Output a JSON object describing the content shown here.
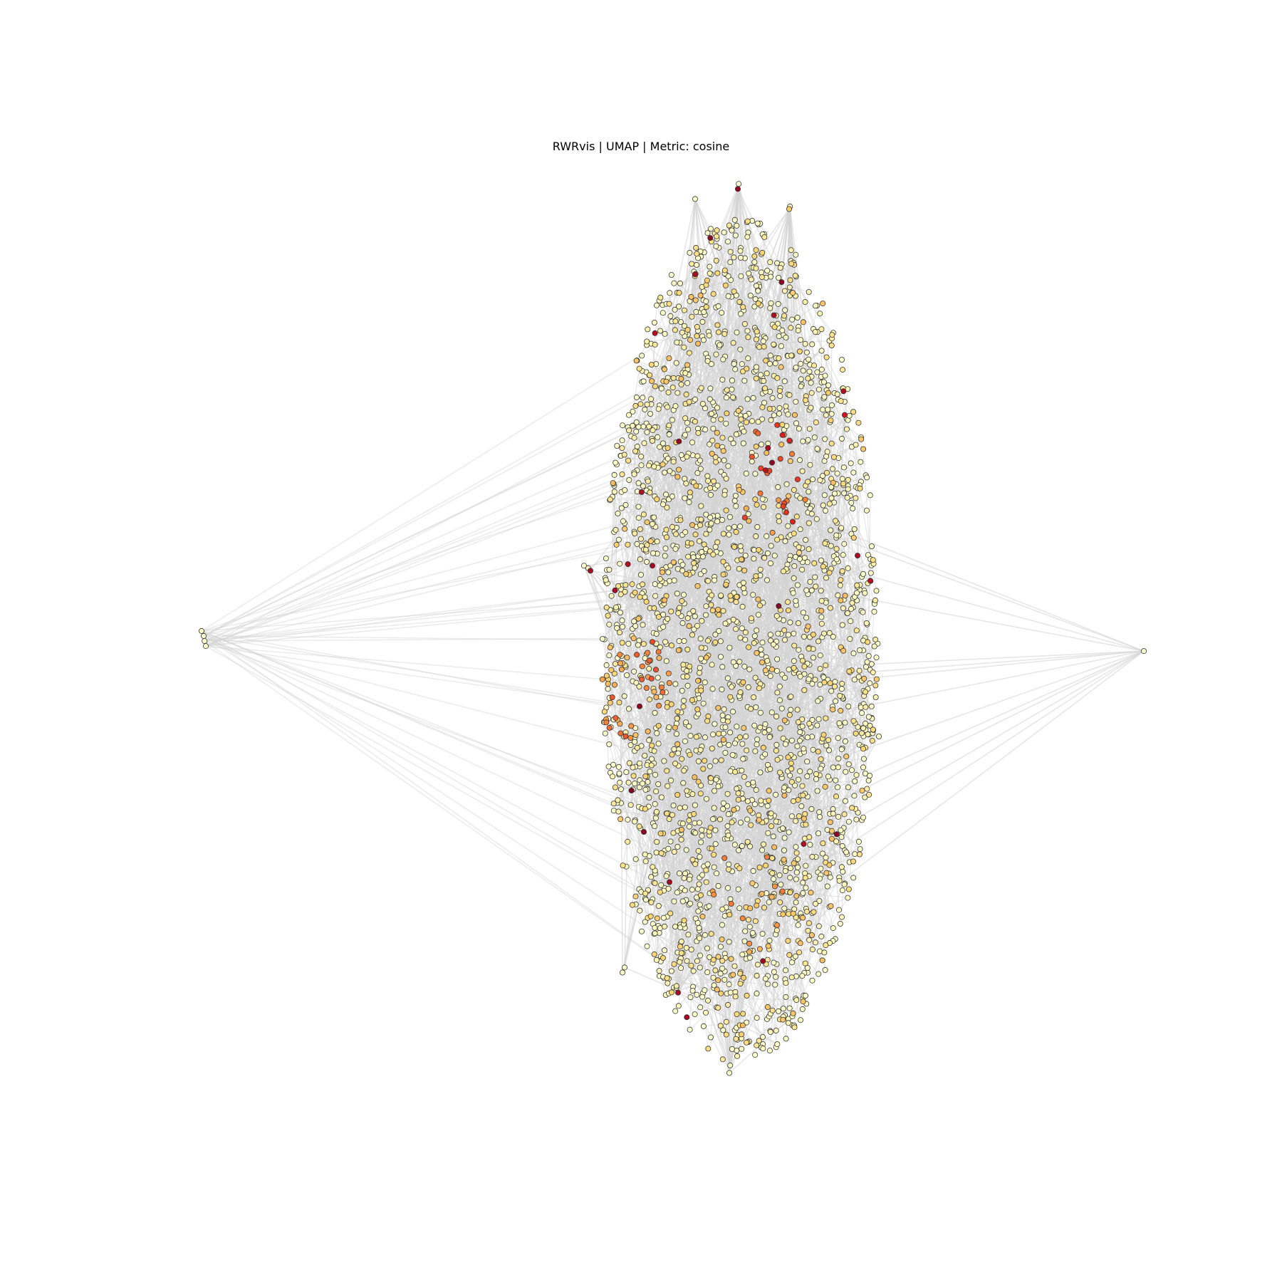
{
  "chart_data": {
    "type": "scatter",
    "subtype": "network-embedding",
    "title": "RWRvis | UMAP | Metric: cosine",
    "axes_visible": false,
    "grid": false,
    "legend": "none",
    "x_range": [
      -14.0,
      11.0
    ],
    "y_range": [
      -9.5,
      9.5
    ],
    "colormap": [
      "#ffffcc",
      "#fed976",
      "#fd8d3c",
      "#e31a1c",
      "#800026"
    ],
    "edge_color": "#d3d3d3",
    "node_edge_color": "#333333",
    "cluster_points": {
      "x_range": [
        -2.6,
        3.9
      ],
      "count": 2600,
      "hotspots": [
        {
          "x": 1.4,
          "y": 3.2,
          "intensity": 0.8
        },
        {
          "x": -1.8,
          "y": -0.9,
          "intensity": 0.65
        },
        {
          "x": 0.8,
          "y": -5.2,
          "intensity": 0.55
        }
      ]
    },
    "points": [
      {
        "x": -11.9,
        "y": 0.1,
        "v": 0.0
      },
      {
        "x": -11.95,
        "y": 0.2,
        "v": 0.0
      },
      {
        "x": -11.88,
        "y": 0.0,
        "v": 0.0
      },
      {
        "x": -11.85,
        "y": -0.1,
        "v": 0.0
      },
      {
        "x": 10.1,
        "y": -0.2,
        "v": 0.0
      },
      {
        "x": -0.4,
        "y": 8.8,
        "v": 0.0
      },
      {
        "x": 0.6,
        "y": 9.0,
        "v": 0.95
      },
      {
        "x": 0.62,
        "y": 9.1,
        "v": 0.0
      },
      {
        "x": 1.8,
        "y": 8.6,
        "v": 0.3
      },
      {
        "x": 1.82,
        "y": 8.65,
        "v": 0.0
      },
      {
        "x": -0.4,
        "y": 7.3,
        "v": 0.9
      },
      {
        "x": -3.0,
        "y": 1.5,
        "v": 0.0
      },
      {
        "x": -2.9,
        "y": 1.45,
        "v": 0.0
      },
      {
        "x": -2.85,
        "y": 1.4,
        "v": 0.9
      },
      {
        "x": 3.4,
        "y": 1.7,
        "v": 0.9
      },
      {
        "x": 3.7,
        "y": 1.2,
        "v": 0.85
      },
      {
        "x": 3.9,
        "y": -1.9,
        "v": 0.0
      },
      {
        "x": -2.1,
        "y": -6.6,
        "v": 0.0
      },
      {
        "x": -2.05,
        "y": -6.5,
        "v": 0.0
      },
      {
        "x": -0.8,
        "y": -7.0,
        "v": 0.9
      },
      {
        "x": 0.4,
        "y": -8.6,
        "v": 0.0
      },
      {
        "x": 0.42,
        "y": -8.45,
        "v": 0.0
      },
      {
        "x": -1.4,
        "y": 1.5,
        "v": 0.9
      },
      {
        "x": -1.7,
        "y": -1.3,
        "v": 0.95
      },
      {
        "x": -1.6,
        "y": -3.8,
        "v": 0.95
      },
      {
        "x": -1.0,
        "y": -4.8,
        "v": 0.9
      },
      {
        "x": 1.4,
        "y": 3.55,
        "v": 0.95
      },
      {
        "x": 1.25,
        "y": 3.4,
        "v": 0.85
      },
      {
        "x": 3.1,
        "y": 4.5,
        "v": 0.8
      }
    ]
  }
}
